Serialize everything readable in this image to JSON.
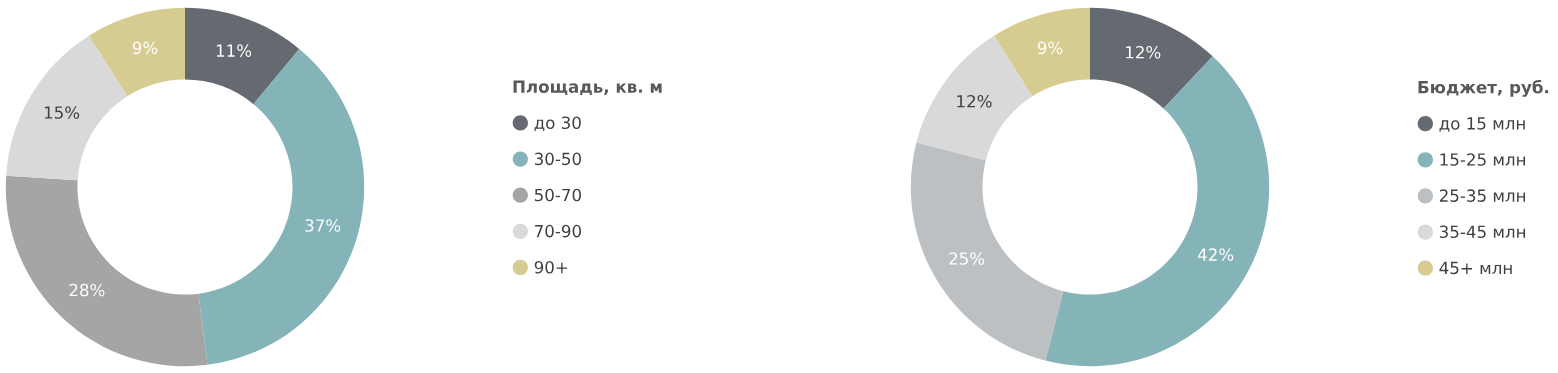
{
  "chart_data": [
    {
      "type": "donut",
      "legend_title": "Площадь, кв. м",
      "categories": [
        "до 30",
        "30-50",
        "50-70",
        "70-90",
        "90+"
      ],
      "values": [
        11,
        37,
        28,
        15,
        9
      ],
      "value_labels": [
        "11%",
        "37%",
        "28%",
        "15%",
        "9%"
      ],
      "colors": [
        "#646a70",
        "#84b3b8",
        "#a5a5a5",
        "#d9d9d9",
        "#d6cc92"
      ],
      "legend": "right"
    },
    {
      "type": "donut",
      "legend_title": "Бюджет, руб.",
      "categories": [
        "до 15 млн",
        "15-25 млн",
        "25-35 млн",
        "35-45 млн",
        "45+ млн"
      ],
      "values": [
        12,
        42,
        25,
        12,
        9
      ],
      "value_labels": [
        "12%",
        "42%",
        "25%",
        "12%",
        "9%"
      ],
      "colors": [
        "#646a70",
        "#84b3b8",
        "#bcc0c3",
        "#d9d9d9",
        "#d6cc92"
      ],
      "legend": "right"
    }
  ]
}
